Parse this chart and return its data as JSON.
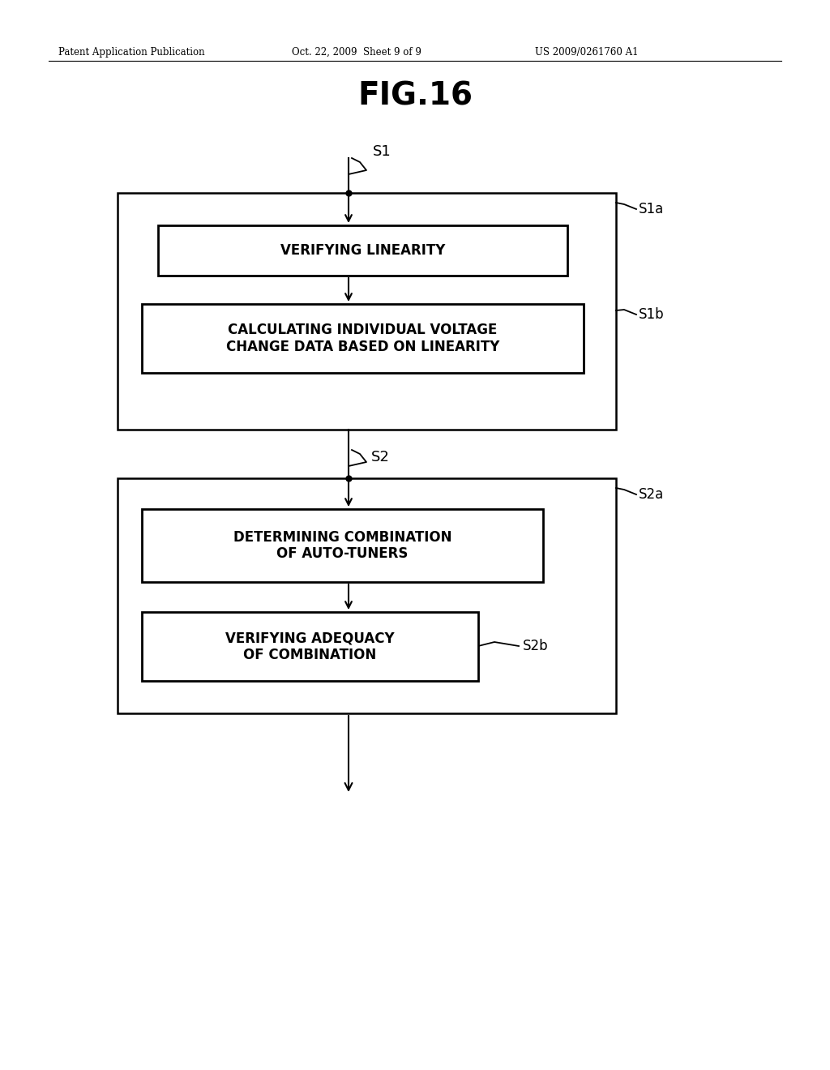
{
  "bg_color": "#ffffff",
  "header_left": "Patent Application Publication",
  "header_mid": "Oct. 22, 2009  Sheet 9 of 9",
  "header_right": "US 2009/0261760 A1",
  "fig_title": "FIG.16",
  "s1_label": "S1",
  "s2_label": "S2",
  "s1a_label": "S1a",
  "s1b_label": "S1b",
  "s2a_label": "S2a",
  "s2b_label": "S2b",
  "box1_text": "VERIFYING LINEARITY",
  "box2_text": "CALCULATING INDIVIDUAL VOLTAGE\nCHANGE DATA BASED ON LINEARITY",
  "box3_text": "DETERMINING COMBINATION\nOF AUTO-TUNERS",
  "box4_text": "VERIFYING ADEQUACY\nOF COMBINATION",
  "lw_outer": 1.8,
  "lw_inner": 2.0,
  "lw_line": 1.5
}
